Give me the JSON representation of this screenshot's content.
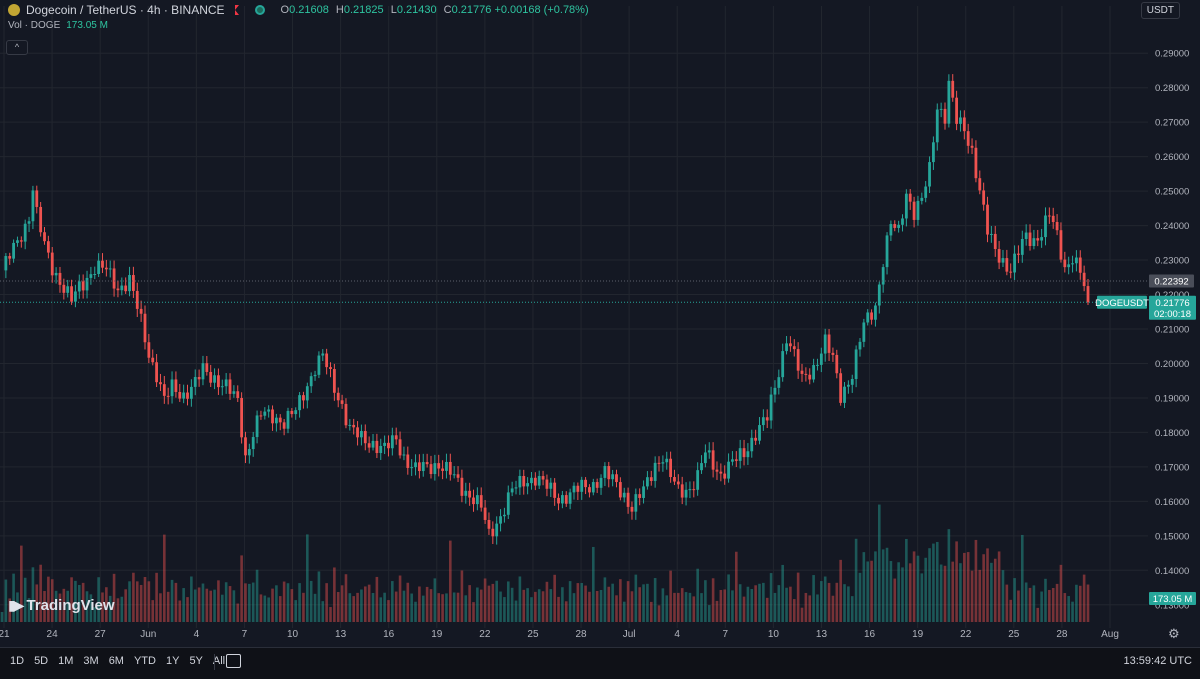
{
  "header": {
    "symbol_title": "Dogecoin / TetherUS · 4h · BINANCE",
    "open_label": "O",
    "open": "0.21608",
    "high_label": "H",
    "high": "0.21825",
    "low_label": "L",
    "low": "0.21430",
    "close_label": "C",
    "close": "0.21776",
    "change": "+0.00168 (+0.78%)"
  },
  "volume_row": {
    "label": "Vol · DOGE",
    "value": "173.05 M"
  },
  "collapse_glyph": "^",
  "currency_button": "USDT",
  "watermark": "TradingView",
  "price_tags": {
    "prev_level": "0.22392",
    "symbol": "DOGEUSDT",
    "last_price": "0.21776",
    "countdown": "02:00:18",
    "volume": "173.05 M"
  },
  "bottom_bar": {
    "timeframes": [
      "1D",
      "5D",
      "1M",
      "3M",
      "6M",
      "YTD",
      "1Y",
      "5Y",
      "All"
    ],
    "clock": "13:59:42 UTC"
  },
  "colors": {
    "up": "#26a69a",
    "down": "#ef5350",
    "background": "#141823",
    "grid": "#22262f"
  },
  "chart_data": {
    "type": "candlestick",
    "title": "Dogecoin / TetherUS · 4h · BINANCE",
    "ylim": [
      0.125,
      0.295
    ],
    "y_ticks": [
      "0.13000",
      "0.14000",
      "0.15000",
      "0.16000",
      "0.17000",
      "0.18000",
      "0.19000",
      "0.20000",
      "0.21000",
      "0.22000",
      "0.23000",
      "0.24000",
      "0.25000",
      "0.26000",
      "0.27000",
      "0.28000",
      "0.29000"
    ],
    "x_ticks": [
      "21",
      "24",
      "27",
      "Jun",
      "4",
      "7",
      "10",
      "13",
      "16",
      "19",
      "22",
      "25",
      "28",
      "Jul",
      "4",
      "7",
      "10",
      "13",
      "16",
      "19",
      "22",
      "25",
      "28",
      "Aug"
    ],
    "anchors": [
      [
        0,
        0.227
      ],
      [
        3,
        0.233
      ],
      [
        6,
        0.24
      ],
      [
        7,
        0.243
      ],
      [
        8,
        0.251
      ],
      [
        9,
        0.243
      ],
      [
        11,
        0.234
      ],
      [
        13,
        0.228
      ],
      [
        15,
        0.224
      ],
      [
        18,
        0.218
      ],
      [
        20,
        0.222
      ],
      [
        24,
        0.228
      ],
      [
        27,
        0.227
      ],
      [
        30,
        0.222
      ],
      [
        33,
        0.224
      ],
      [
        36,
        0.212
      ],
      [
        38,
        0.203
      ],
      [
        40,
        0.197
      ],
      [
        42,
        0.189
      ],
      [
        44,
        0.193
      ],
      [
        47,
        0.191
      ],
      [
        50,
        0.194
      ],
      [
        52,
        0.198
      ],
      [
        55,
        0.196
      ],
      [
        58,
        0.193
      ],
      [
        61,
        0.189
      ],
      [
        63,
        0.173
      ],
      [
        65,
        0.18
      ],
      [
        67,
        0.185
      ],
      [
        70,
        0.185
      ],
      [
        73,
        0.183
      ],
      [
        76,
        0.186
      ],
      [
        79,
        0.194
      ],
      [
        81,
        0.199
      ],
      [
        83,
        0.202
      ],
      [
        86,
        0.193
      ],
      [
        88,
        0.188
      ],
      [
        90,
        0.181
      ],
      [
        93,
        0.178
      ],
      [
        96,
        0.177
      ],
      [
        99,
        0.175
      ],
      [
        102,
        0.178
      ],
      [
        104,
        0.173
      ],
      [
        107,
        0.169
      ],
      [
        110,
        0.17
      ],
      [
        113,
        0.171
      ],
      [
        116,
        0.168
      ],
      [
        119,
        0.164
      ],
      [
        122,
        0.161
      ],
      [
        124,
        0.158
      ],
      [
        126,
        0.15
      ],
      [
        129,
        0.156
      ],
      [
        132,
        0.163
      ],
      [
        135,
        0.166
      ],
      [
        138,
        0.167
      ],
      [
        141,
        0.164
      ],
      [
        144,
        0.161
      ],
      [
        147,
        0.162
      ],
      [
        150,
        0.164
      ],
      [
        153,
        0.165
      ],
      [
        156,
        0.168
      ],
      [
        159,
        0.165
      ],
      [
        161,
        0.162
      ],
      [
        163,
        0.158
      ],
      [
        166,
        0.163
      ],
      [
        169,
        0.171
      ],
      [
        171,
        0.173
      ],
      [
        173,
        0.167
      ],
      [
        175,
        0.163
      ],
      [
        178,
        0.164
      ],
      [
        180,
        0.167
      ],
      [
        182,
        0.174
      ],
      [
        184,
        0.171
      ],
      [
        186,
        0.168
      ],
      [
        189,
        0.171
      ],
      [
        192,
        0.174
      ],
      [
        195,
        0.18
      ],
      [
        198,
        0.184
      ],
      [
        201,
        0.198
      ],
      [
        203,
        0.208
      ],
      [
        205,
        0.202
      ],
      [
        207,
        0.195
      ],
      [
        210,
        0.199
      ],
      [
        213,
        0.206
      ],
      [
        215,
        0.201
      ],
      [
        217,
        0.191
      ],
      [
        220,
        0.197
      ],
      [
        223,
        0.211
      ],
      [
        226,
        0.217
      ],
      [
        228,
        0.23
      ],
      [
        230,
        0.24
      ],
      [
        232,
        0.238
      ],
      [
        234,
        0.25
      ],
      [
        236,
        0.244
      ],
      [
        238,
        0.247
      ],
      [
        240,
        0.256
      ],
      [
        242,
        0.275
      ],
      [
        244,
        0.272
      ],
      [
        245,
        0.281
      ],
      [
        247,
        0.27
      ],
      [
        249,
        0.268
      ],
      [
        251,
        0.262
      ],
      [
        253,
        0.25
      ],
      [
        255,
        0.238
      ],
      [
        257,
        0.233
      ],
      [
        259,
        0.23
      ],
      [
        261,
        0.227
      ],
      [
        263,
        0.232
      ],
      [
        265,
        0.237
      ],
      [
        267,
        0.236
      ],
      [
        269,
        0.238
      ],
      [
        271,
        0.243
      ],
      [
        273,
        0.237
      ],
      [
        275,
        0.228
      ],
      [
        277,
        0.231
      ],
      [
        279,
        0.226
      ],
      [
        281,
        0.218
      ]
    ],
    "last_close": 0.21776,
    "previous_level": 0.22392,
    "volume_last": "173.05 M"
  }
}
